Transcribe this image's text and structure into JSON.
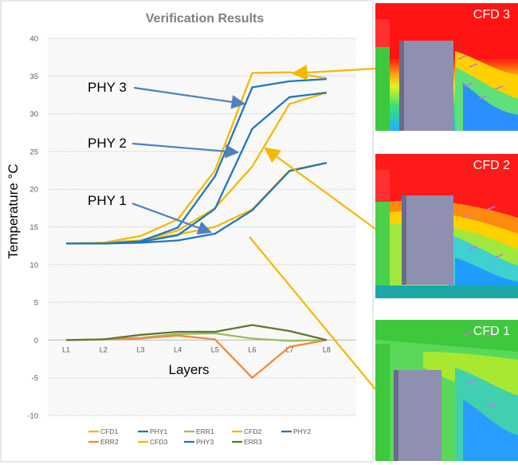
{
  "chart_data": {
    "type": "line",
    "title": "Verification Results",
    "xlabel": "Layers",
    "ylabel": "Temperature °C",
    "categories": [
      "L1",
      "L2",
      "L3",
      "L4",
      "L5",
      "L6",
      "L7",
      "L8"
    ],
    "ylim": [
      -10,
      40
    ],
    "yticks": [
      "-10",
      "-5",
      "0",
      "5",
      "10",
      "15",
      "20",
      "25",
      "30",
      "35",
      "40"
    ],
    "grid": "horizontal",
    "legend_position": "bottom",
    "series": [
      {
        "name": "CFD1",
        "color": "#F5B800",
        "values": [
          12.8,
          12.9,
          13.2,
          14.0,
          15.0,
          17.3,
          22.5,
          23.5
        ]
      },
      {
        "name": "PHY1",
        "color": "#1F77C1",
        "values": [
          12.8,
          12.8,
          12.9,
          13.2,
          14.1,
          17.2,
          22.4,
          23.5
        ]
      },
      {
        "name": "ERR1",
        "color": "#9BBB59",
        "values": [
          0.0,
          0.1,
          0.3,
          0.8,
          0.9,
          0.2,
          -0.1,
          0.0
        ]
      },
      {
        "name": "CFD2",
        "color": "#F5B800",
        "values": [
          12.8,
          12.9,
          13.2,
          14.5,
          17.5,
          23.0,
          31.3,
          32.8
        ]
      },
      {
        "name": "PHY2",
        "color": "#1F77C1",
        "values": [
          12.8,
          12.8,
          13.0,
          13.9,
          17.4,
          28.0,
          32.2,
          32.8
        ]
      },
      {
        "name": "ERR2",
        "color": "#F0883E",
        "values": [
          0.0,
          0.1,
          0.2,
          0.6,
          0.1,
          -5.0,
          -0.9,
          0.0
        ]
      },
      {
        "name": "CFD3",
        "color": "#F5B800",
        "values": [
          12.8,
          12.9,
          13.8,
          16.0,
          22.5,
          35.4,
          35.5,
          34.7
        ]
      },
      {
        "name": "PHY3",
        "color": "#1F77C1",
        "values": [
          12.8,
          12.8,
          13.1,
          14.9,
          21.7,
          33.5,
          34.3,
          34.6
        ]
      },
      {
        "name": "ERR3",
        "color": "#5E7A2E",
        "values": [
          0.0,
          0.1,
          0.7,
          1.1,
          1.1,
          2.0,
          1.2,
          0.0
        ]
      }
    ],
    "annotations": [
      "PHY 3",
      "PHY 2",
      "PHY 1"
    ]
  },
  "cfd_panels": [
    {
      "label": "CFD 3"
    },
    {
      "label": "CFD 2"
    },
    {
      "label": "CFD 1"
    }
  ]
}
